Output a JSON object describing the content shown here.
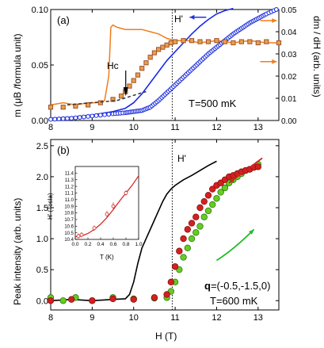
{
  "chart_data": [
    {
      "type": "scatter",
      "panel_label": "(a)",
      "xlim": [
        8,
        13.5
      ],
      "ylim": [
        0,
        0.1
      ],
      "y2lim": [
        0,
        0.05
      ],
      "x_ticks": [
        "8",
        "9",
        "10",
        "11",
        "12",
        "13"
      ],
      "y_ticks": [
        "0.00",
        "0.05",
        "0.10"
      ],
      "y2_ticks": [
        "0.00",
        "0.01",
        "0.02",
        "0.03",
        "0.04",
        "0.05"
      ],
      "ylabel": "m (μB /formula unit)",
      "y2label": "dm / dH (arb. units)",
      "annotations": {
        "hc": "Hc",
        "hprime": "H'",
        "temp": "T=500 mK"
      },
      "hprime_x": 10.93,
      "hc_x": 10.0,
      "series": [
        {
          "name": "m (blue circles)",
          "color": "#2233dd",
          "x": [
            8.0,
            8.5,
            9.0,
            9.5,
            9.8,
            10.0,
            10.2,
            10.4,
            10.6,
            10.8,
            11.0,
            11.2,
            11.4,
            11.6,
            11.8,
            12.0,
            12.2,
            12.4,
            12.6,
            12.8,
            13.0,
            13.2,
            13.5
          ],
          "y": [
            0.001,
            0.002,
            0.004,
            0.006,
            0.007,
            0.008,
            0.009,
            0.012,
            0.018,
            0.025,
            0.032,
            0.039,
            0.046,
            0.053,
            0.06,
            0.066,
            0.072,
            0.078,
            0.083,
            0.088,
            0.092,
            0.096,
            0.101
          ]
        },
        {
          "name": "m (blue line)",
          "color": "#1a2be8",
          "x": [
            8.0,
            8.5,
            9.0,
            9.5,
            9.8,
            10.0,
            10.2,
            10.4,
            10.6,
            10.8,
            11.0,
            11.2,
            11.4,
            11.6,
            11.8,
            12.0,
            12.2,
            12.4
          ],
          "y": [
            0.002,
            0.003,
            0.005,
            0.008,
            0.011,
            0.016,
            0.024,
            0.034,
            0.044,
            0.054,
            0.062,
            0.07,
            0.078,
            0.085,
            0.091,
            0.096,
            0.099,
            0.101
          ]
        },
        {
          "name": "m (squares)",
          "color": "#a0522d",
          "x": [
            8.0,
            8.3,
            8.6,
            8.9,
            9.2,
            9.5,
            9.7,
            9.8,
            9.9,
            10.0,
            10.1,
            10.2,
            10.3,
            10.4,
            10.5,
            10.6,
            10.7,
            10.8,
            10.9,
            11.0,
            11.2,
            11.4,
            11.6,
            11.8,
            12.0,
            12.2,
            12.4,
            12.6,
            12.8,
            13.0,
            13.2,
            13.5
          ],
          "y": [
            0.012,
            0.012,
            0.013,
            0.014,
            0.016,
            0.019,
            0.022,
            0.026,
            0.031,
            0.036,
            0.041,
            0.047,
            0.052,
            0.057,
            0.061,
            0.064,
            0.066,
            0.068,
            0.07,
            0.071,
            0.072,
            0.072,
            0.071,
            0.071,
            0.072,
            0.071,
            0.07,
            0.071,
            0.071,
            0.07,
            0.071,
            0.07
          ]
        },
        {
          "name": "dm/dH (orange)",
          "color": "#f07d1c",
          "axis": "y2",
          "x": [
            8.0,
            8.3,
            8.6,
            8.9,
            9.1,
            9.3,
            9.4,
            9.45,
            9.5,
            9.6,
            9.8,
            10.0,
            10.2,
            10.4,
            10.6,
            10.8,
            11.0,
            11.3,
            11.6,
            12.0,
            12.4,
            12.8,
            13.2,
            13.5
          ],
          "y": [
            0.007,
            0.008,
            0.007,
            0.008,
            0.008,
            0.009,
            0.02,
            0.042,
            0.043,
            0.042,
            0.041,
            0.041,
            0.041,
            0.04,
            0.039,
            0.037,
            0.036,
            0.036,
            0.035,
            0.036,
            0.035,
            0.036,
            0.035,
            0.035
          ]
        },
        {
          "name": "dashed fit",
          "color": "#333333",
          "x": [
            8.4,
            9.6,
            10.2,
            10.3
          ],
          "y": [
            0.014,
            0.018,
            0.025,
            0.026
          ]
        }
      ],
      "legend_arrows": [
        {
          "series": "blue",
          "x1": 11.75,
          "x2": 11.35,
          "y": 0.093,
          "direction": "left",
          "color": "#2233dd"
        },
        {
          "series": "orange",
          "x1": 13.05,
          "x2": 13.45,
          "y": 0.09,
          "direction": "right",
          "color": "#f07d1c"
        },
        {
          "series": "orange2",
          "x1": 13.05,
          "x2": 13.45,
          "y": 0.053,
          "direction": "right",
          "color": "#f07d1c"
        }
      ]
    },
    {
      "type": "scatter",
      "panel_label": "(b)",
      "xlim": [
        8,
        13.5
      ],
      "ylim": [
        -0.15,
        2.6
      ],
      "x_ticks": [
        "8",
        "9",
        "10",
        "11",
        "12",
        "13"
      ],
      "y_ticks": [
        "0.0",
        "0.5",
        "1.0",
        "1.5",
        "2.0",
        "2.5"
      ],
      "xlabel": "H (T)",
      "ylabel": "Peak intensity (arb. units)",
      "annotations": {
        "hprime": "H'",
        "q_bold": "q",
        "q_rest": "=(-0.5,-1.5,0)",
        "temp": "T=600 mK"
      },
      "hprime_x": 10.93,
      "series": [
        {
          "name": "black line",
          "color": "#000000",
          "x": [
            8.0,
            8.5,
            9.0,
            9.5,
            9.8,
            9.9,
            10.0,
            10.1,
            10.2,
            10.3,
            10.4,
            10.5,
            10.6,
            10.7,
            10.8,
            10.9,
            11.0,
            11.2,
            11.4,
            11.6,
            11.8,
            12.0
          ],
          "y": [
            0.0,
            0.02,
            0.0,
            0.02,
            0.03,
            0.1,
            0.3,
            0.6,
            0.85,
            1.0,
            1.15,
            1.3,
            1.45,
            1.6,
            1.72,
            1.8,
            1.86,
            1.95,
            2.02,
            2.1,
            2.18,
            2.25
          ]
        },
        {
          "name": "red spheres",
          "color": "#d42020",
          "x": [
            8.0,
            8.5,
            9.0,
            9.5,
            10.0,
            10.5,
            10.8,
            10.9,
            11.0,
            11.1,
            11.2,
            11.3,
            11.4,
            11.5,
            11.6,
            11.7,
            11.8,
            11.9,
            12.0,
            12.1,
            12.2,
            12.3,
            12.4,
            12.5,
            12.6,
            12.7,
            12.8,
            12.9,
            13.0
          ],
          "y": [
            0.0,
            0.02,
            0.0,
            0.03,
            0.02,
            0.05,
            0.1,
            0.3,
            0.55,
            0.8,
            1.0,
            1.15,
            1.25,
            1.35,
            1.5,
            1.6,
            1.7,
            1.8,
            1.86,
            1.9,
            1.95,
            2.0,
            2.02,
            2.05,
            2.08,
            2.1,
            2.12,
            2.15,
            2.16
          ]
        },
        {
          "name": "green spheres",
          "color": "#66cc22",
          "x": [
            8.0,
            8.3,
            8.6,
            9.0,
            9.5,
            10.0,
            10.5,
            10.8,
            10.9,
            11.0,
            11.1,
            11.2,
            11.3,
            11.4,
            11.5,
            11.6,
            11.7,
            11.8,
            11.9,
            12.0,
            12.1,
            12.2,
            12.3,
            12.4,
            12.5,
            12.6,
            12.7,
            12.8,
            12.9,
            13.0
          ],
          "y": [
            0.05,
            0.0,
            0.05,
            0.0,
            0.05,
            0.03,
            0.04,
            0.05,
            0.15,
            0.3,
            0.5,
            0.7,
            0.85,
            1.0,
            1.1,
            1.2,
            1.35,
            1.45,
            1.55,
            1.65,
            1.75,
            1.82,
            1.9,
            1.95,
            2.0,
            2.05,
            2.1,
            2.12,
            2.15,
            2.2
          ]
        }
      ],
      "arrows": [
        {
          "color": "#d42020",
          "direction": "down-left",
          "from": [
            13.1,
            2.3
          ],
          "to": [
            12.3,
            1.9
          ]
        },
        {
          "color": "#22bb22",
          "direction": "up-right",
          "from": [
            12.0,
            0.65
          ],
          "to": [
            12.9,
            1.15
          ]
        }
      ],
      "inset": {
        "type": "line",
        "xlabel": "T (K)",
        "ylabel": "H' (Tesla)",
        "xlim": [
          0.0,
          1.0
        ],
        "ylim": [
          10.4,
          11.5
        ],
        "x_ticks": [
          "0.0",
          "0.2",
          "0.4",
          "0.6",
          "0.8",
          "1.0"
        ],
        "y_ticks": [
          "10.4",
          "10.5",
          "10.6",
          "10.7",
          "10.8",
          "10.9",
          "11.0",
          "11.1",
          "11.2",
          "11.3",
          "11.4"
        ],
        "points": {
          "x": [
            0.05,
            0.1,
            0.3,
            0.5,
            0.6,
            0.8
          ],
          "y": [
            10.45,
            10.47,
            10.57,
            10.78,
            10.9,
            11.1
          ],
          "err": [
            0.04,
            0.04,
            0.04,
            0.05,
            0.06,
            0.04
          ]
        },
        "fit": {
          "x": [
            0.0,
            0.1,
            0.2,
            0.3,
            0.4,
            0.5,
            0.6,
            0.7,
            0.8,
            0.9,
            1.0
          ],
          "y": [
            10.44,
            10.45,
            10.49,
            10.55,
            10.63,
            10.73,
            10.85,
            10.98,
            11.1,
            11.22,
            11.36
          ]
        },
        "color": "#d42020"
      }
    }
  ]
}
